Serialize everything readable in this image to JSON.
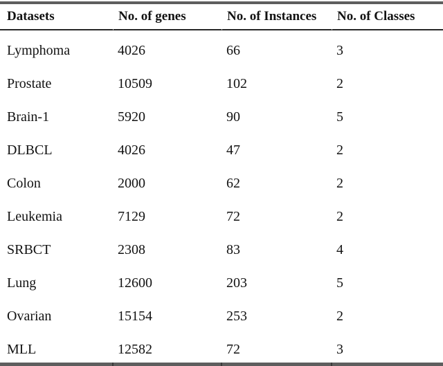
{
  "table": {
    "columns": [
      "Datasets",
      "No. of genes",
      "No. of Instances",
      "No. of Classes"
    ],
    "rows": [
      [
        "Lymphoma",
        "4026",
        "66",
        "3"
      ],
      [
        "Prostate",
        "10509",
        "102",
        "2"
      ],
      [
        "Brain-1",
        "5920",
        "90",
        "5"
      ],
      [
        "DLBCL",
        "4026",
        "47",
        "2"
      ],
      [
        "Colon",
        "2000",
        "62",
        "2"
      ],
      [
        "Leukemia",
        "7129",
        "72",
        "2"
      ],
      [
        "SRBCT",
        "2308",
        "83",
        "4"
      ],
      [
        "Lung",
        "12600",
        "203",
        "5"
      ],
      [
        "Ovarian",
        "15154",
        "253",
        "2"
      ],
      [
        "MLL",
        "12582",
        "72",
        "3"
      ]
    ],
    "colors": {
      "text": "#121212",
      "thick_rule": "#5e5e5e",
      "rule_tick": "#3a3a3a",
      "header_rule": "#262626",
      "background": "#ffffff"
    }
  }
}
